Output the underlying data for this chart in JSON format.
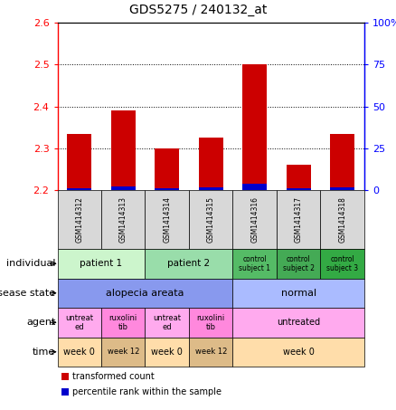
{
  "title": "GDS5275 / 240132_at",
  "samples": [
    "GSM1414312",
    "GSM1414313",
    "GSM1414314",
    "GSM1414315",
    "GSM1414316",
    "GSM1414317",
    "GSM1414318"
  ],
  "red_values": [
    2.335,
    2.39,
    2.3,
    2.325,
    2.5,
    2.26,
    2.335
  ],
  "blue_values": [
    2.205,
    2.208,
    2.205,
    2.206,
    2.215,
    2.204,
    2.206
  ],
  "y_min": 2.2,
  "y_max": 2.6,
  "y_ticks": [
    2.2,
    2.3,
    2.4,
    2.5,
    2.6
  ],
  "y2_ticks": [
    0,
    25,
    50,
    75,
    100
  ],
  "y2_labels": [
    "0",
    "25",
    "50",
    "75",
    "100%"
  ],
  "bar_bottom": 2.2,
  "metadata_rows": [
    {
      "label": "individual",
      "cells": [
        {
          "text": "patient 1",
          "span": 2,
          "color": "#ccf5cc",
          "fontsize": 7.5
        },
        {
          "text": "patient 2",
          "span": 2,
          "color": "#99ddaa",
          "fontsize": 7.5
        },
        {
          "text": "control\nsubject 1",
          "span": 1,
          "color": "#55bb66",
          "fontsize": 5.5
        },
        {
          "text": "control\nsubject 2",
          "span": 1,
          "color": "#44aa55",
          "fontsize": 5.5
        },
        {
          "text": "control\nsubject 3",
          "span": 1,
          "color": "#33aa44",
          "fontsize": 5.5
        }
      ]
    },
    {
      "label": "disease state",
      "cells": [
        {
          "text": "alopecia areata",
          "span": 4,
          "color": "#8899ee",
          "fontsize": 8
        },
        {
          "text": "normal",
          "span": 3,
          "color": "#aabbff",
          "fontsize": 8
        }
      ]
    },
    {
      "label": "agent",
      "cells": [
        {
          "text": "untreat\ned",
          "span": 1,
          "color": "#ffaaee",
          "fontsize": 6
        },
        {
          "text": "ruxolini\ntib",
          "span": 1,
          "color": "#ff88dd",
          "fontsize": 6
        },
        {
          "text": "untreat\ned",
          "span": 1,
          "color": "#ffaaee",
          "fontsize": 6
        },
        {
          "text": "ruxolini\ntib",
          "span": 1,
          "color": "#ff88dd",
          "fontsize": 6
        },
        {
          "text": "untreated",
          "span": 3,
          "color": "#ffaaee",
          "fontsize": 7
        }
      ]
    },
    {
      "label": "time",
      "cells": [
        {
          "text": "week 0",
          "span": 1,
          "color": "#ffddaa",
          "fontsize": 7
        },
        {
          "text": "week 12",
          "span": 1,
          "color": "#ddbb88",
          "fontsize": 6
        },
        {
          "text": "week 0",
          "span": 1,
          "color": "#ffddaa",
          "fontsize": 7
        },
        {
          "text": "week 12",
          "span": 1,
          "color": "#ddbb88",
          "fontsize": 6
        },
        {
          "text": "week 0",
          "span": 3,
          "color": "#ffddaa",
          "fontsize": 7
        }
      ]
    }
  ],
  "legend_items": [
    {
      "color": "#cc0000",
      "label": "transformed count"
    },
    {
      "color": "#0000cc",
      "label": "percentile rank within the sample"
    }
  ],
  "row_labels_fontsize": 8,
  "sample_label_bg": "#d8d8d8"
}
